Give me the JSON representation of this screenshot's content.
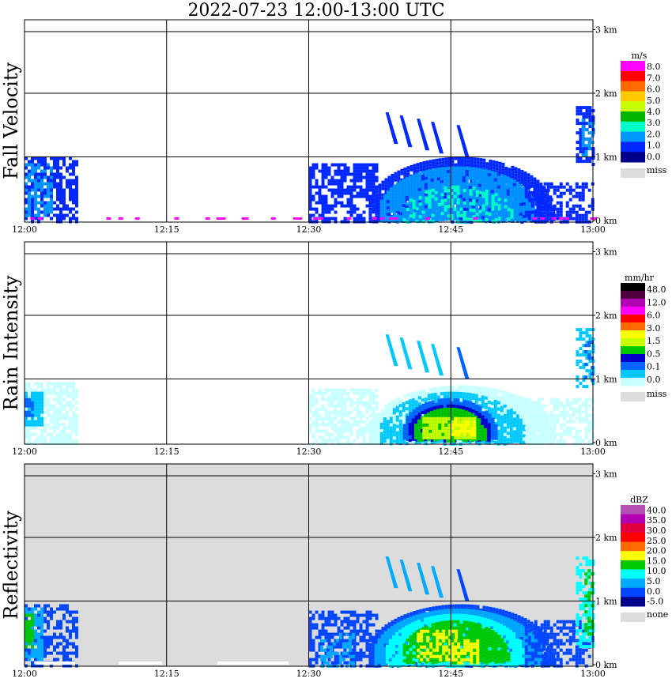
{
  "title": "2022-07-23  12:00-13:00 UTC",
  "colors": {
    "missing": "#dcdcdc",
    "grid": "#000000"
  },
  "chart_data": [
    {
      "type": "heatmap",
      "ylabel": "Fall Velocity",
      "x_ticks": [
        "12:00",
        "12:15",
        "12:30",
        "12:45",
        "13:00"
      ],
      "y_ticks": [
        "0 km",
        "1 km",
        "2 km",
        "3 km"
      ],
      "xlim": [
        "12:00",
        "13:00"
      ],
      "ylim_km": [
        0,
        3.2
      ],
      "background": "white",
      "colorbar": {
        "unit": "m/s",
        "labels": [
          "8.0",
          "7.0",
          "6.0",
          "5.0",
          "4.0",
          "3.0",
          "2.0",
          "1.0",
          "0.0"
        ],
        "colors": [
          "#ff00ff",
          "#ff0000",
          "#ff6a00",
          "#ffc800",
          "#c8ff00",
          "#00b400",
          "#00ffc8",
          "#0096ff",
          "#0028ff",
          "#00008c"
        ],
        "extra": "miss"
      }
    },
    {
      "type": "heatmap",
      "ylabel": "Rain Intensity",
      "x_ticks": [
        "12:00",
        "12:15",
        "12:30",
        "12:45",
        "13:00"
      ],
      "y_ticks": [
        "0 km",
        "1 km",
        "2 km",
        "3 km"
      ],
      "xlim": [
        "12:00",
        "13:00"
      ],
      "ylim_km": [
        0,
        3.2
      ],
      "background": "white",
      "colorbar": {
        "unit": "mm/hr",
        "labels": [
          "48.0",
          "12.0",
          "6.0",
          "3.0",
          "1.5",
          "0.5",
          "0.1",
          "0.0"
        ],
        "colors": [
          "#000000",
          "#50003c",
          "#b400b4",
          "#ff00ff",
          "#ff0000",
          "#ff6a00",
          "#ffff00",
          "#c8ff00",
          "#00c800",
          "#0000c8",
          "#0064ff",
          "#00c8ff",
          "#c8ffff"
        ],
        "extra": "miss"
      }
    },
    {
      "type": "heatmap",
      "ylabel": "Reflectivity",
      "x_ticks": [
        "12:00",
        "12:15",
        "12:30",
        "12:45",
        "13:00"
      ],
      "y_ticks": [
        "0 km",
        "1 km",
        "2 km",
        "3 km"
      ],
      "xlim": [
        "12:00",
        "13:00"
      ],
      "ylim_km": [
        0,
        3.2
      ],
      "background": "gray",
      "colorbar": {
        "unit": "dBZ",
        "labels": [
          "40.0",
          "35.0",
          "30.0",
          "25.0",
          "20.0",
          "15.0",
          "10.0",
          "5.0",
          "0.0",
          "-5.0"
        ],
        "colors": [
          "#b450b4",
          "#b400b4",
          "#e1003c",
          "#ff0000",
          "#ff6a00",
          "#ffff00",
          "#00c800",
          "#00ffff",
          "#00aaff",
          "#0046ff",
          "#00008c"
        ],
        "extra": "none"
      }
    }
  ]
}
